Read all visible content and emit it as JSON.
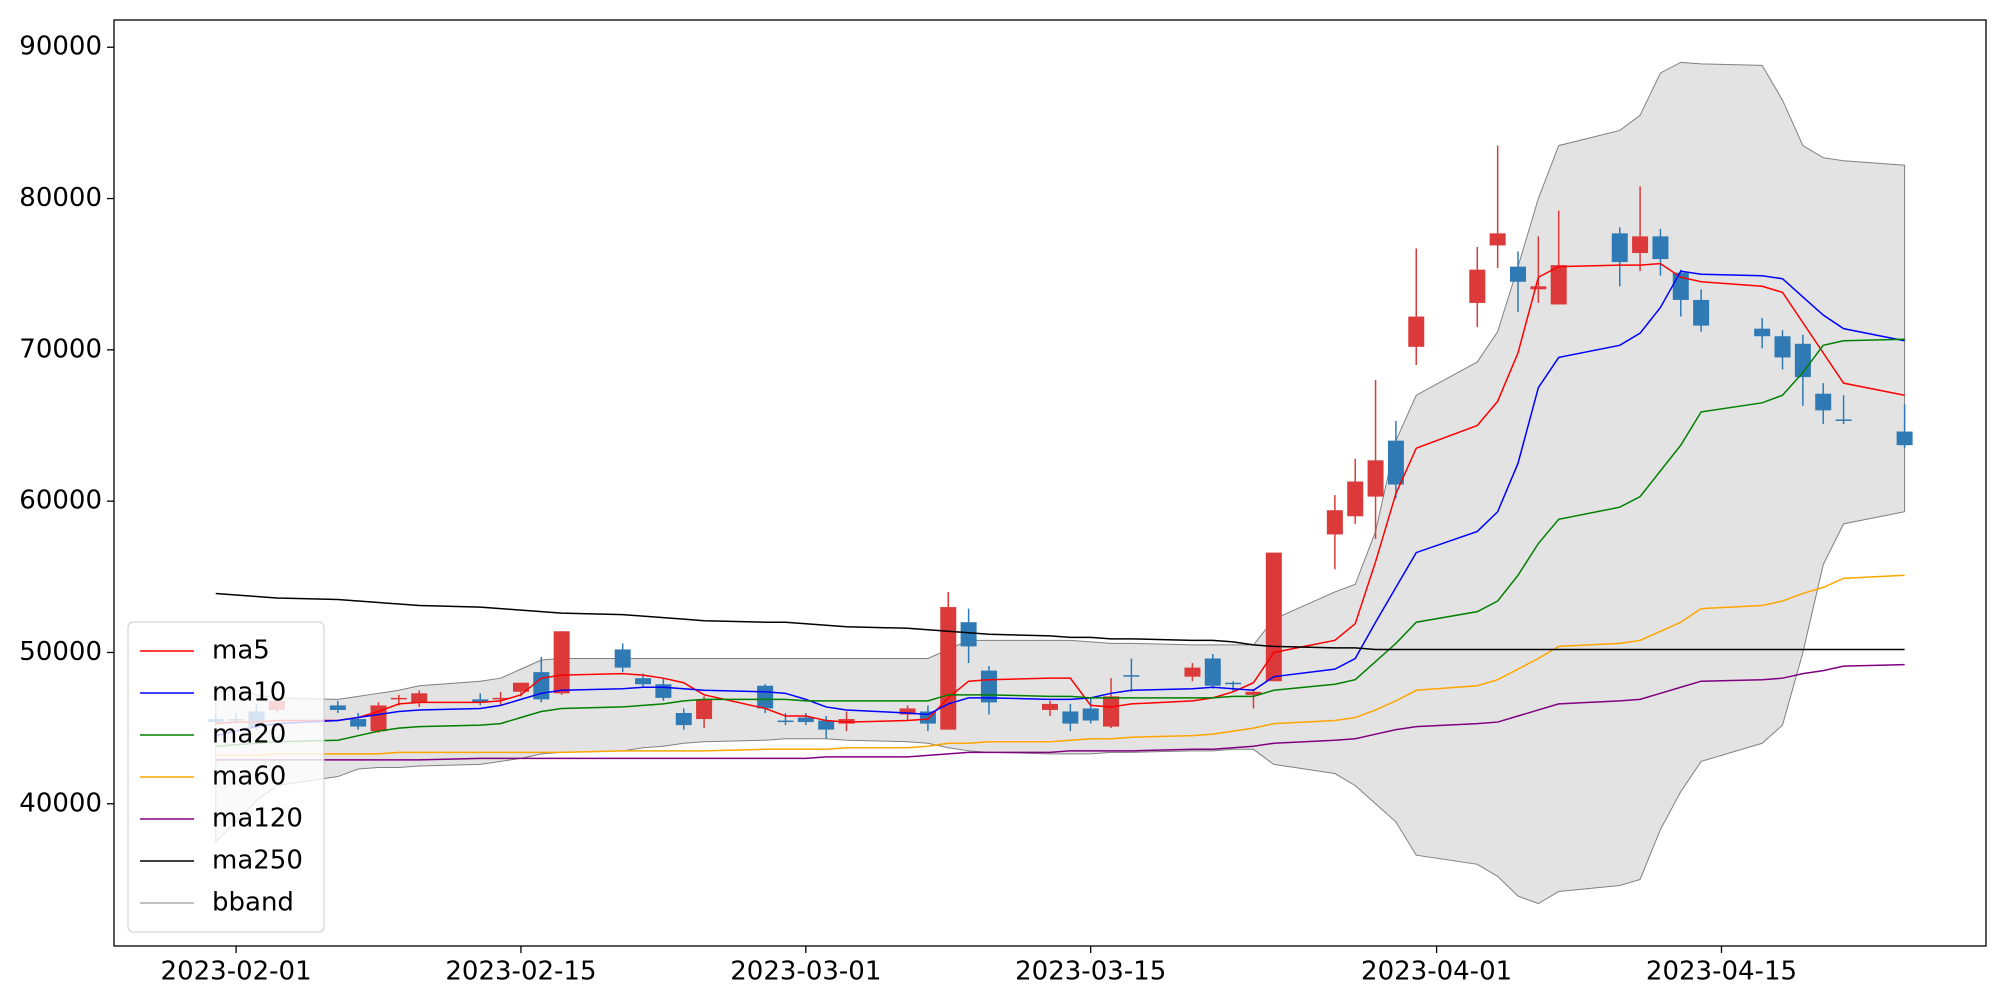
{
  "chart_data": {
    "type": "candlestick",
    "x": [
      "2023-01-31",
      "2023-02-01",
      "2023-02-02",
      "2023-02-03",
      "2023-02-06",
      "2023-02-07",
      "2023-02-08",
      "2023-02-09",
      "2023-02-10",
      "2023-02-13",
      "2023-02-14",
      "2023-02-15",
      "2023-02-16",
      "2023-02-17",
      "2023-02-20",
      "2023-02-21",
      "2023-02-22",
      "2023-02-23",
      "2023-02-24",
      "2023-02-27",
      "2023-02-28",
      "2023-03-01",
      "2023-03-02",
      "2023-03-03",
      "2023-03-06",
      "2023-03-07",
      "2023-03-08",
      "2023-03-09",
      "2023-03-10",
      "2023-03-13",
      "2023-03-14",
      "2023-03-15",
      "2023-03-16",
      "2023-03-17",
      "2023-03-20",
      "2023-03-21",
      "2023-03-22",
      "2023-03-23",
      "2023-03-24",
      "2023-03-27",
      "2023-03-28",
      "2023-03-29",
      "2023-03-30",
      "2023-03-31",
      "2023-04-03",
      "2023-04-04",
      "2023-04-05",
      "2023-04-06",
      "2023-04-07",
      "2023-04-10",
      "2023-04-11",
      "2023-04-12",
      "2023-04-13",
      "2023-04-14",
      "2023-04-17",
      "2023-04-18",
      "2023-04-19",
      "2023-04-20",
      "2023-04-21",
      "2023-04-24"
    ],
    "open": [
      45600,
      45600,
      46100,
      46200,
      46500,
      45600,
      44800,
      46900,
      46700,
      46900,
      46900,
      47400,
      48700,
      47300,
      50200,
      48300,
      47900,
      46000,
      45600,
      47800,
      45500,
      45700,
      45500,
      45300,
      45900,
      46100,
      44900,
      52000,
      48800,
      46200,
      46100,
      46300,
      45100,
      48500,
      48400,
      49600,
      48000,
      47200,
      48100,
      57800,
      59000,
      60300,
      64000,
      70200,
      73100,
      76900,
      75500,
      74000,
      73000,
      77700,
      76400,
      77500,
      75100,
      73300,
      71400,
      70900,
      70400,
      67100,
      65400,
      64600
    ],
    "high": [
      45900,
      46000,
      46600,
      47000,
      46800,
      46000,
      46700,
      47200,
      47500,
      47300,
      47400,
      48000,
      49700,
      51400,
      50600,
      48600,
      48300,
      46300,
      47100,
      47900,
      46000,
      46000,
      45800,
      46100,
      46500,
      46500,
      54000,
      52900,
      49100,
      46800,
      46600,
      47000,
      48300,
      49600,
      49300,
      49900,
      48100,
      47600,
      56600,
      60400,
      62800,
      68000,
      65300,
      76700,
      76800,
      83500,
      76500,
      77500,
      79200,
      78100,
      80800,
      78000,
      75300,
      74000,
      72100,
      71300,
      71000,
      67800,
      67000,
      66400
    ],
    "low": [
      45200,
      45300,
      44900,
      46000,
      46000,
      44900,
      44700,
      46500,
      46400,
      46500,
      46500,
      47100,
      46700,
      47200,
      48700,
      47700,
      46800,
      44900,
      45000,
      46000,
      45200,
      45200,
      44300,
      44800,
      45500,
      44800,
      44900,
      49300,
      45900,
      45800,
      44800,
      45300,
      45000,
      47400,
      48100,
      47600,
      47400,
      46300,
      48100,
      55500,
      58500,
      57500,
      60200,
      69000,
      71500,
      75400,
      72500,
      73100,
      73000,
      74200,
      75200,
      74900,
      72200,
      71200,
      70100,
      68700,
      66300,
      65100,
      65100,
      63500
    ],
    "close": [
      45400,
      45500,
      45100,
      46800,
      46200,
      45100,
      46500,
      47000,
      47300,
      46700,
      47000,
      48000,
      46900,
      51400,
      49000,
      47900,
      47000,
      45200,
      46900,
      46300,
      45400,
      45400,
      44900,
      45600,
      46300,
      45300,
      53000,
      50400,
      46700,
      46600,
      45300,
      45500,
      47100,
      48400,
      49000,
      47800,
      47900,
      47400,
      56600,
      59400,
      61300,
      62700,
      61100,
      72200,
      75300,
      77700,
      74500,
      74200,
      75600,
      75800,
      77500,
      76000,
      73300,
      71600,
      70900,
      69500,
      68200,
      66000,
      65300,
      63700
    ],
    "up_color": "#dc3a3a",
    "down_color": "#2f7ab5",
    "series": [
      {
        "name": "ma5",
        "color": "#ff0000",
        "values": [
          45300,
          45400,
          45400,
          45500,
          45500,
          45700,
          46100,
          46600,
          46700,
          46700,
          46800,
          47200,
          48300,
          48500,
          48600,
          48500,
          48300,
          48000,
          47200,
          46300,
          45800,
          45800,
          45500,
          45400,
          45500,
          45600,
          47000,
          48100,
          48200,
          48300,
          48300,
          46500,
          46400,
          46600,
          46800,
          47000,
          47400,
          48000,
          50000,
          50800,
          51900,
          56000,
          60500,
          63500,
          65000,
          66600,
          69800,
          74800,
          75500,
          75600,
          75600,
          75700,
          74800,
          74500,
          74200,
          73800,
          71800,
          69800,
          67800,
          67000
        ]
      },
      {
        "name": "ma10",
        "color": "#0000ff",
        "values": [
          44500,
          44800,
          45100,
          45300,
          45500,
          45700,
          45900,
          46100,
          46200,
          46300,
          46500,
          46900,
          47300,
          47500,
          47600,
          47700,
          47700,
          47600,
          47500,
          47400,
          47300,
          46900,
          46400,
          46200,
          46000,
          45900,
          46600,
          47000,
          47000,
          46900,
          46900,
          47000,
          47300,
          47500,
          47600,
          47700,
          47600,
          47500,
          48400,
          48900,
          49600,
          52000,
          54300,
          56600,
          58000,
          59300,
          62500,
          67500,
          69500,
          70300,
          71100,
          72800,
          75200,
          75000,
          74900,
          74700,
          73500,
          72300,
          71400,
          70600
        ]
      },
      {
        "name": "ma20",
        "color": "#008000",
        "values": [
          43800,
          43900,
          44000,
          44100,
          44200,
          44500,
          44800,
          45000,
          45100,
          45200,
          45300,
          45700,
          46100,
          46300,
          46400,
          46500,
          46600,
          46800,
          46900,
          46900,
          46900,
          46800,
          46800,
          46800,
          46800,
          46800,
          47200,
          47200,
          47200,
          47100,
          47100,
          47000,
          47000,
          47000,
          47000,
          47000,
          47100,
          47100,
          47500,
          47900,
          48200,
          49400,
          50600,
          52000,
          52700,
          53400,
          55100,
          57200,
          58800,
          59600,
          60300,
          62000,
          63700,
          65900,
          66500,
          67000,
          68500,
          70300,
          70600,
          70700
        ]
      },
      {
        "name": "ma60",
        "color": "#ffa500",
        "values": [
          43200,
          43200,
          43200,
          43300,
          43300,
          43300,
          43300,
          43400,
          43400,
          43400,
          43400,
          43400,
          43400,
          43400,
          43500,
          43500,
          43500,
          43500,
          43500,
          43600,
          43600,
          43600,
          43600,
          43700,
          43700,
          43800,
          44000,
          44000,
          44100,
          44100,
          44200,
          44300,
          44300,
          44400,
          44500,
          44600,
          44800,
          45000,
          45300,
          45500,
          45700,
          46200,
          46800,
          47500,
          47800,
          48200,
          48900,
          49600,
          50400,
          50600,
          50800,
          51400,
          52000,
          52900,
          53100,
          53400,
          53900,
          54300,
          54900,
          55100
        ]
      },
      {
        "name": "ma120",
        "color": "#800080",
        "values": [
          42900,
          42900,
          42900,
          42900,
          42900,
          42900,
          42900,
          42900,
          42900,
          43000,
          43000,
          43000,
          43000,
          43000,
          43000,
          43000,
          43000,
          43000,
          43000,
          43000,
          43000,
          43000,
          43100,
          43100,
          43100,
          43200,
          43300,
          43400,
          43400,
          43400,
          43500,
          43500,
          43500,
          43500,
          43600,
          43600,
          43700,
          43800,
          44000,
          44200,
          44300,
          44600,
          44900,
          45100,
          45300,
          45400,
          45800,
          46200,
          46600,
          46800,
          46900,
          47300,
          47700,
          48100,
          48200,
          48300,
          48600,
          48800,
          49100,
          49200
        ]
      },
      {
        "name": "ma250",
        "color": "#000000",
        "values": [
          53900,
          53800,
          53700,
          53600,
          53500,
          53400,
          53300,
          53200,
          53100,
          53000,
          52900,
          52800,
          52700,
          52600,
          52500,
          52400,
          52300,
          52200,
          52100,
          52000,
          52000,
          51900,
          51800,
          51700,
          51600,
          51500,
          51400,
          51300,
          51200,
          51100,
          51000,
          51000,
          50900,
          50900,
          50800,
          50800,
          50700,
          50500,
          50400,
          50300,
          50300,
          50200,
          50200,
          50200,
          50200,
          50200,
          50200,
          50200,
          50200,
          50200,
          50200,
          50200,
          50200,
          50200,
          50200,
          50200,
          50200,
          50200,
          50200,
          50200
        ]
      }
    ],
    "band": {
      "name": "bband",
      "color": "#808080",
      "fill": "#e3e3e3",
      "upper": [
        47800,
        47500,
        47200,
        47000,
        46900,
        47100,
        47300,
        47500,
        47800,
        48100,
        48300,
        48900,
        49500,
        49600,
        49600,
        49600,
        49600,
        49600,
        49600,
        49600,
        49600,
        49600,
        49600,
        49600,
        49600,
        49600,
        50200,
        50800,
        50800,
        50800,
        50800,
        50700,
        50600,
        50600,
        50500,
        50500,
        50500,
        50500,
        52200,
        54000,
        54500,
        58000,
        64000,
        67000,
        69200,
        71200,
        75500,
        80000,
        83500,
        84500,
        85500,
        88300,
        89000,
        88900,
        88800,
        86500,
        83500,
        82700,
        82500,
        82200
      ],
      "lower": [
        37500,
        38800,
        40200,
        41200,
        41800,
        42300,
        42400,
        42400,
        42500,
        42600,
        42800,
        43000,
        43300,
        43400,
        43500,
        43700,
        43800,
        44000,
        44100,
        44200,
        44300,
        44300,
        44300,
        44200,
        44100,
        44000,
        43700,
        43500,
        43400,
        43300,
        43300,
        43300,
        43400,
        43400,
        43500,
        43500,
        43600,
        43600,
        42600,
        42000,
        41200,
        40000,
        38800,
        36600,
        36000,
        35200,
        33900,
        33400,
        34200,
        34600,
        35000,
        38300,
        40800,
        42800,
        44000,
        45200,
        50000,
        55800,
        58500,
        59300
      ]
    },
    "xlim": [
      "2023-01-26",
      "2023-04-28"
    ],
    "xticks": [
      "2023-02-01",
      "2023-02-15",
      "2023-03-01",
      "2023-03-15",
      "2023-04-01",
      "2023-04-15"
    ],
    "ylim": [
      30600,
      91800
    ],
    "yticks": [
      40000,
      50000,
      60000,
      70000,
      80000,
      90000
    ],
    "legend": "lower left"
  }
}
